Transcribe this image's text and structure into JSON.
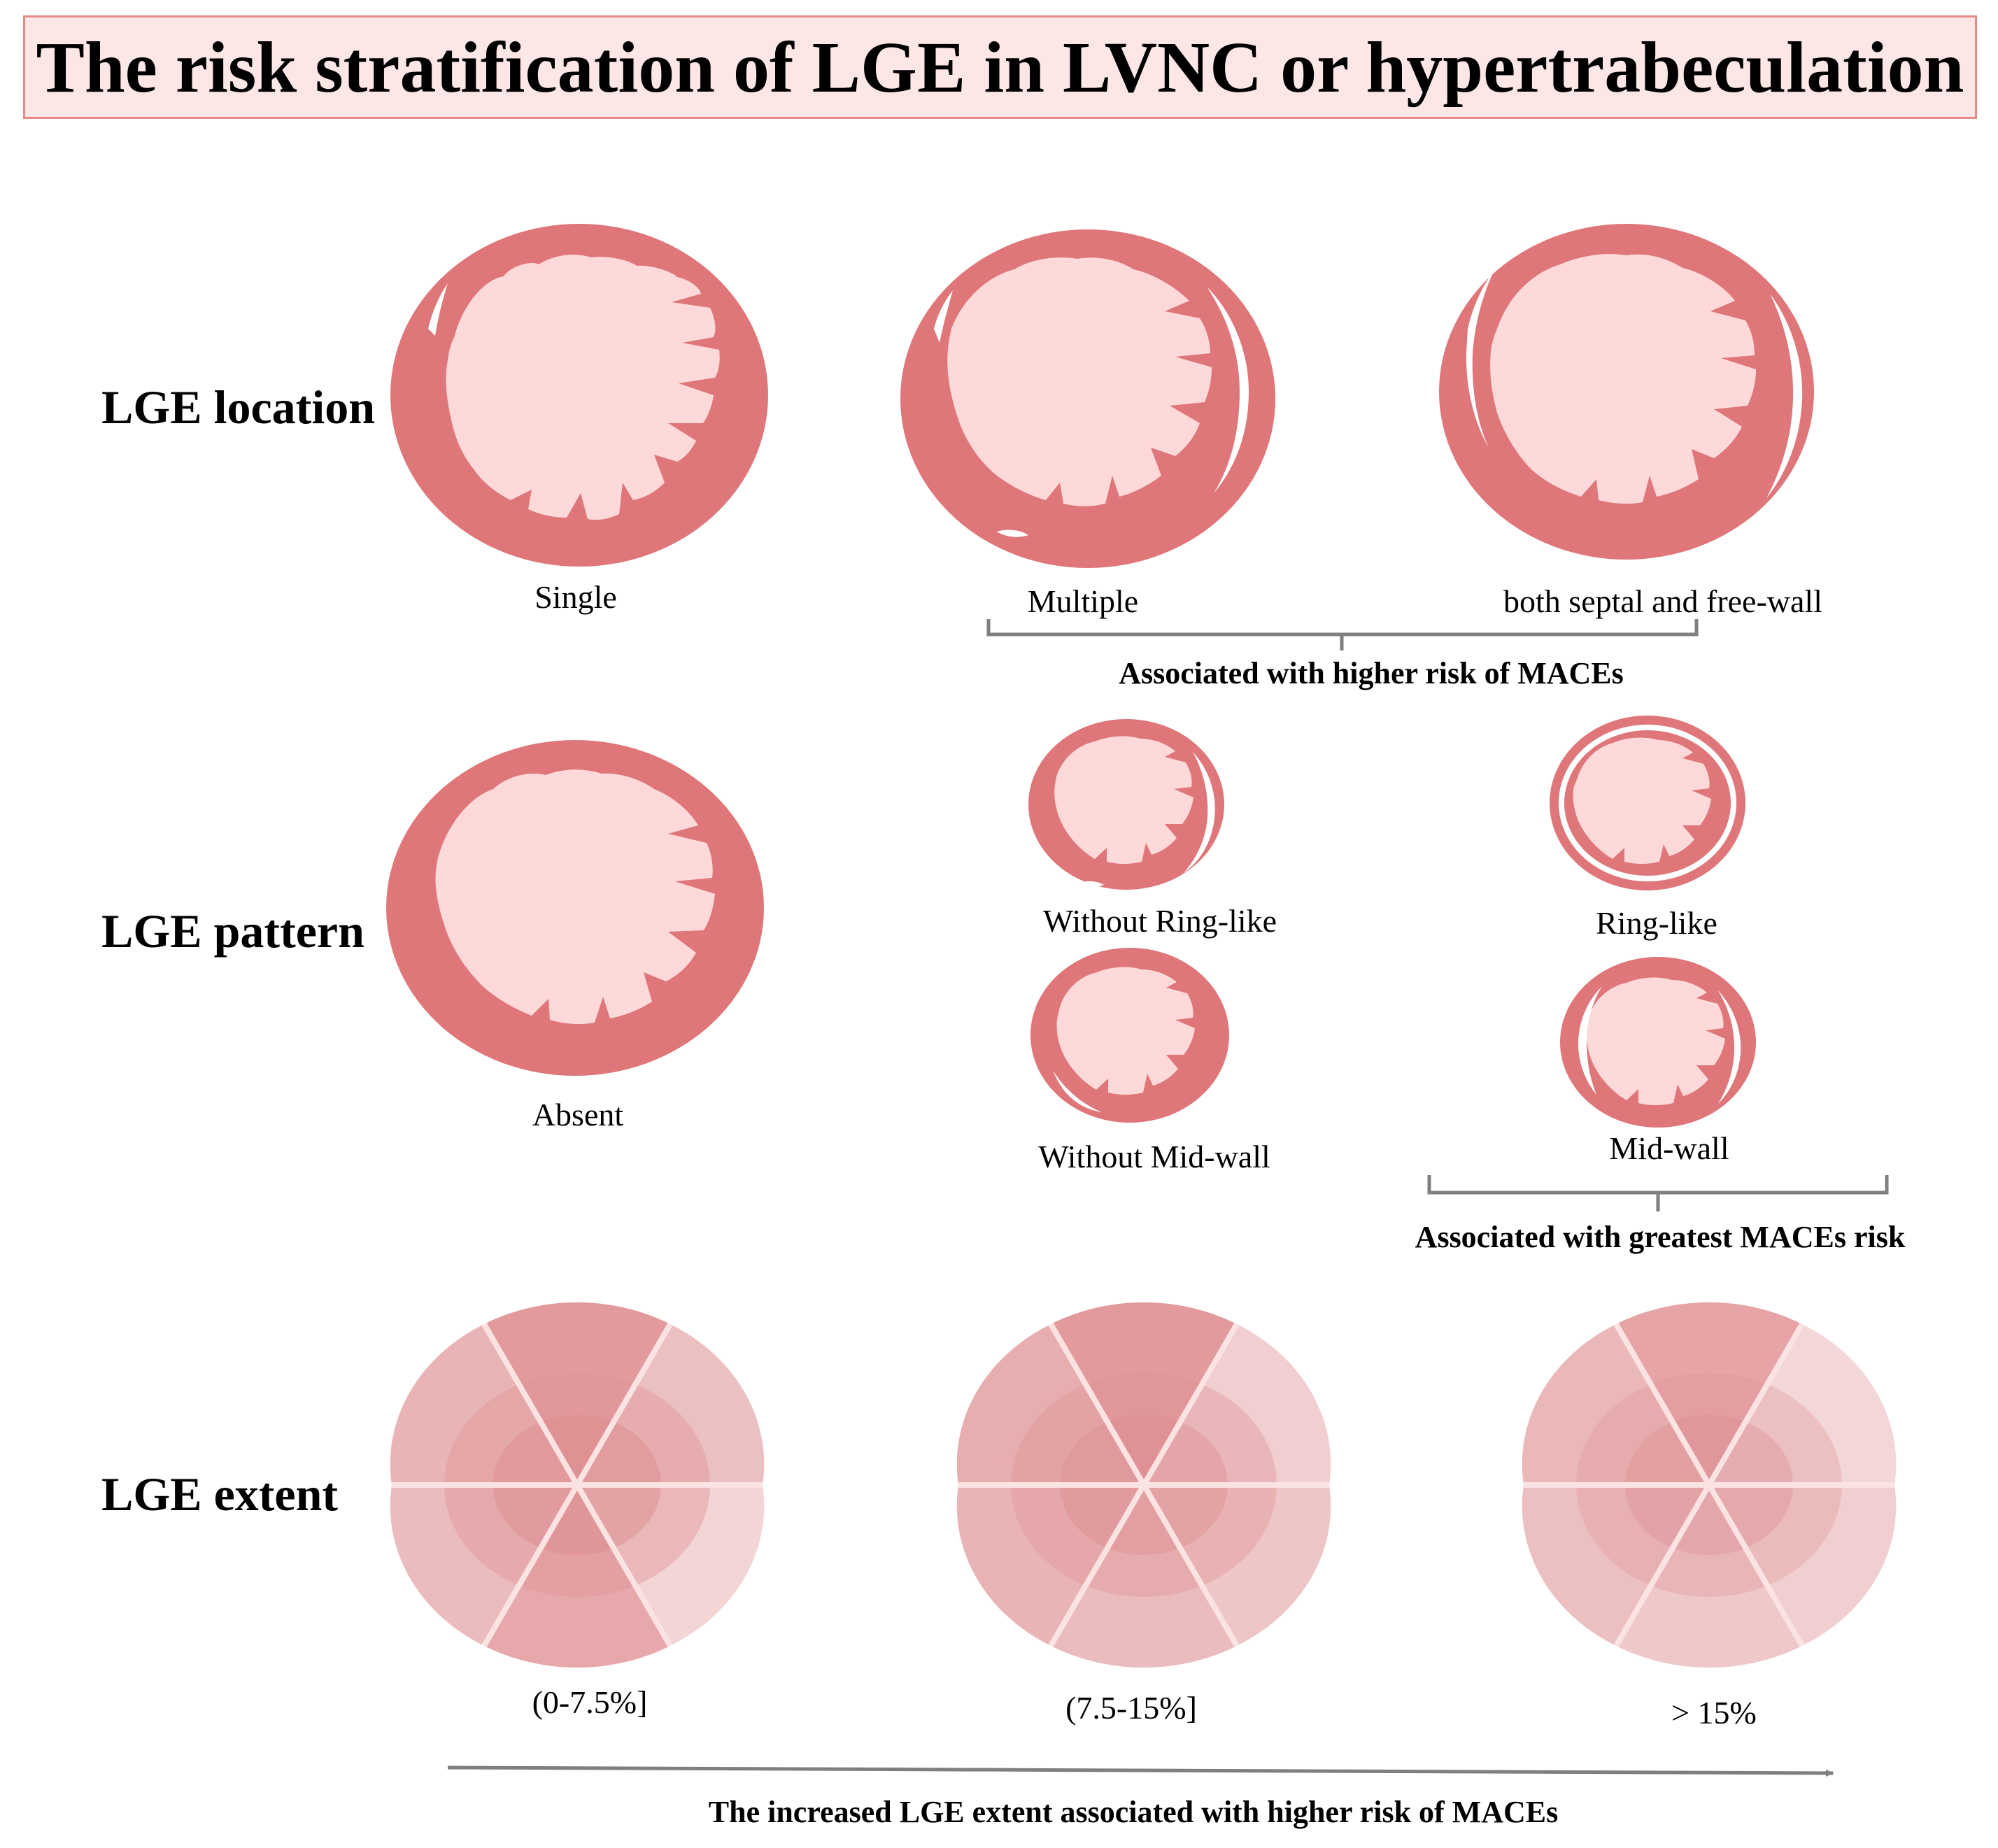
{
  "title": "The risk stratification of LGE  in LVNC or  hypertrabeculation",
  "colors": {
    "myocardium": "#de767a",
    "cavity": "#fdd9d9",
    "enhancement": "#ffffff",
    "title_bg": "#fde6e6",
    "title_border": "#e98a8a",
    "bracket": "#7f7f7f"
  },
  "location": {
    "row_label": "LGE location",
    "single": "Single",
    "multiple": "Multiple",
    "septal_free_wall": "both septal and free-wall",
    "bracket_note": "Associated with higher risk of MACEs"
  },
  "pattern": {
    "row_label": "LGE pattern",
    "absent": "Absent",
    "without_ring": "Without  Ring-like",
    "ring": "Ring-like",
    "without_mid": "Without Mid-wall",
    "mid": "Mid-wall",
    "bracket_note": "Associated with greatest MACEs risk"
  },
  "extent": {
    "row_label": "LGE extent",
    "levels": [
      "(0-7.5%]",
      "(7.5-15%]",
      "> 15%"
    ],
    "arrow_note": "The increased LGE extent associated with higher risk of MACEs"
  }
}
